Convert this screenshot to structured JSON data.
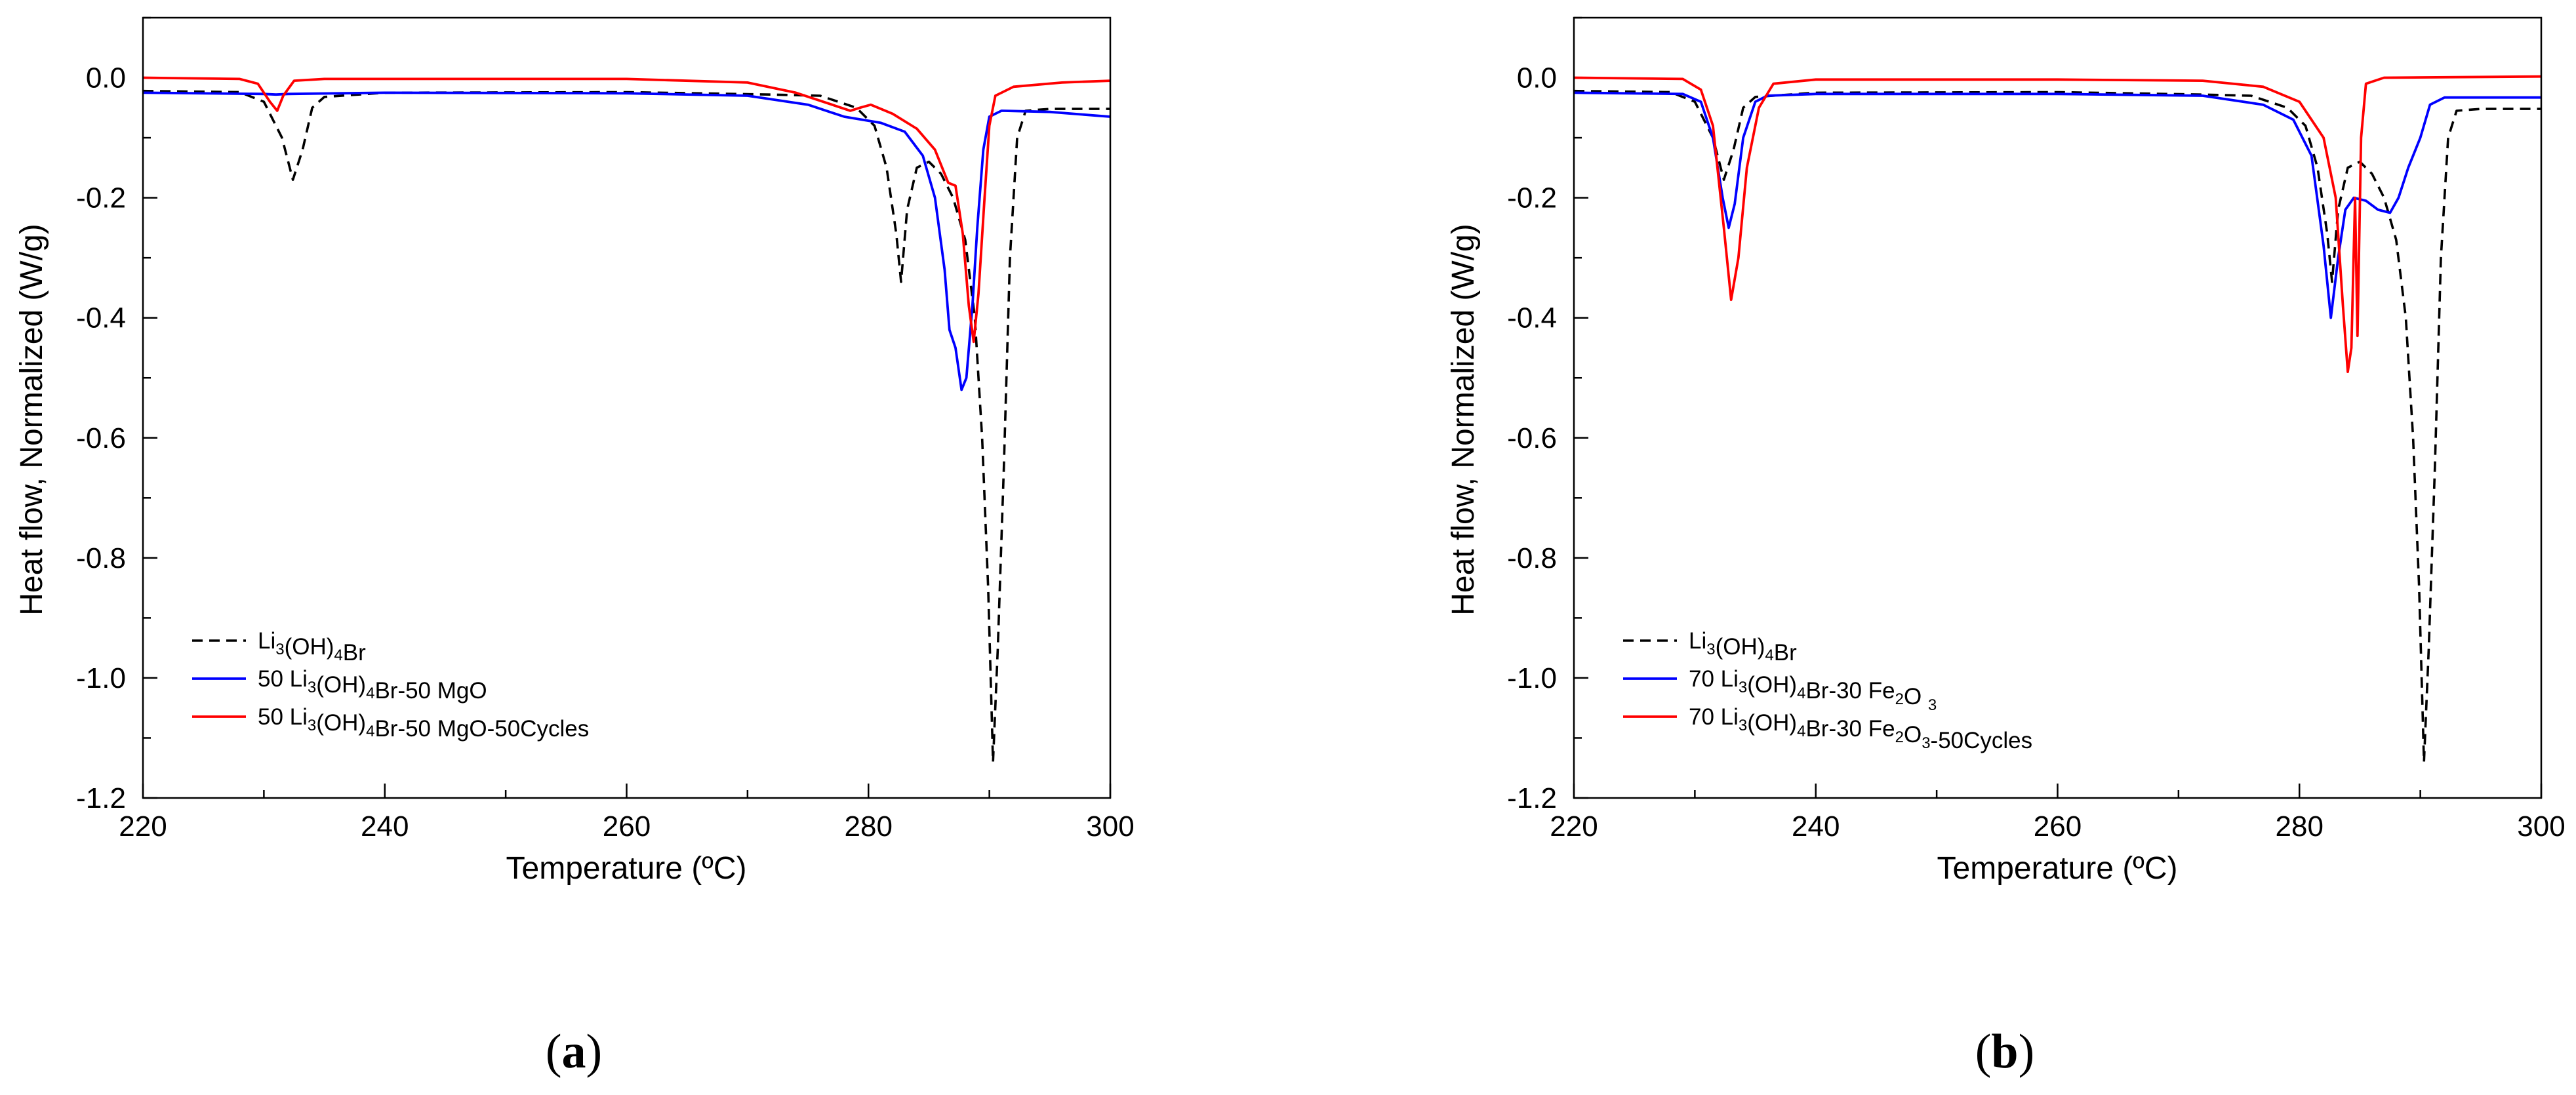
{
  "chart_data": [
    {
      "type": "line",
      "panel_label": "(a)",
      "panel_prefix": "(",
      "panel_letter": "a",
      "panel_suffix": ")",
      "xlabel": "Temperature (ºC)",
      "ylabel": "Heat flow, Normalized (W/g)",
      "xlim": [
        220,
        300
      ],
      "ylim": [
        -1.2,
        0.1
      ],
      "xticks": [
        "220",
        "240",
        "260",
        "280",
        "300"
      ],
      "yticks": [
        "0.0",
        "-0.2",
        "-0.4",
        "-0.6",
        "-0.8",
        "-1.0",
        "-1.2"
      ],
      "legend_position": "bottom-left",
      "series": [
        {
          "name": "Li3(OH)4Br",
          "legend": [
            [
              "Li",
              ""
            ],
            [
              "3",
              "sub"
            ],
            [
              "(OH)",
              ""
            ],
            [
              "4",
              "sub"
            ],
            [
              "Br",
              ""
            ]
          ],
          "color": "#000000",
          "dash": "dashed",
          "points": [
            [
              220,
              -0.022
            ],
            [
              228,
              -0.024
            ],
            [
              230,
              -0.04
            ],
            [
              231.5,
              -0.1
            ],
            [
              232.4,
              -0.17
            ],
            [
              233.2,
              -0.12
            ],
            [
              234,
              -0.05
            ],
            [
              235,
              -0.032
            ],
            [
              240,
              -0.025
            ],
            [
              260,
              -0.024
            ],
            [
              272,
              -0.028
            ],
            [
              276,
              -0.03
            ],
            [
              279,
              -0.05
            ],
            [
              280.5,
              -0.08
            ],
            [
              281.5,
              -0.15
            ],
            [
              282.3,
              -0.26
            ],
            [
              282.7,
              -0.34
            ],
            [
              283.2,
              -0.22
            ],
            [
              284,
              -0.15
            ],
            [
              285,
              -0.14
            ],
            [
              286,
              -0.16
            ],
            [
              287,
              -0.2
            ],
            [
              288,
              -0.27
            ],
            [
              288.8,
              -0.4
            ],
            [
              289.4,
              -0.6
            ],
            [
              289.9,
              -0.85
            ],
            [
              290.3,
              -1.14
            ],
            [
              290.7,
              -0.95
            ],
            [
              291.2,
              -0.65
            ],
            [
              291.7,
              -0.3
            ],
            [
              292.3,
              -0.1
            ],
            [
              293,
              -0.055
            ],
            [
              295,
              -0.052
            ],
            [
              300,
              -0.052
            ]
          ]
        },
        {
          "name": "50 Li3(OH)4Br-50 MgO",
          "legend": [
            [
              "50 Li",
              ""
            ],
            [
              "3",
              "sub"
            ],
            [
              "(OH)",
              ""
            ],
            [
              "4",
              "sub"
            ],
            [
              "Br-50 MgO",
              ""
            ]
          ],
          "color": "#0000ff",
          "dash": "solid",
          "points": [
            [
              220,
              -0.025
            ],
            [
              230,
              -0.027
            ],
            [
              231,
              -0.028
            ],
            [
              232,
              -0.027
            ],
            [
              240,
              -0.025
            ],
            [
              260,
              -0.026
            ],
            [
              270,
              -0.03
            ],
            [
              275,
              -0.045
            ],
            [
              278,
              -0.065
            ],
            [
              281,
              -0.075
            ],
            [
              283,
              -0.09
            ],
            [
              284.5,
              -0.13
            ],
            [
              285.5,
              -0.2
            ],
            [
              286.3,
              -0.32
            ],
            [
              286.7,
              -0.42
            ],
            [
              287.2,
              -0.45
            ],
            [
              287.7,
              -0.52
            ],
            [
              288.1,
              -0.5
            ],
            [
              288.6,
              -0.38
            ],
            [
              289,
              -0.25
            ],
            [
              289.5,
              -0.12
            ],
            [
              290,
              -0.065
            ],
            [
              291,
              -0.055
            ],
            [
              295,
              -0.057
            ],
            [
              300,
              -0.065
            ]
          ]
        },
        {
          "name": "50 Li3(OH)4Br-50 MgO-50Cycles",
          "legend": [
            [
              "50 Li",
              ""
            ],
            [
              "3",
              "sub"
            ],
            [
              "(OH)",
              ""
            ],
            [
              "4",
              "sub"
            ],
            [
              "Br-50 MgO-50Cycles",
              ""
            ]
          ],
          "color": "#ff0000",
          "dash": "solid",
          "points": [
            [
              220,
              0.0
            ],
            [
              228,
              -0.002
            ],
            [
              229.5,
              -0.01
            ],
            [
              230.5,
              -0.04
            ],
            [
              231.1,
              -0.055
            ],
            [
              231.6,
              -0.03
            ],
            [
              232.5,
              -0.005
            ],
            [
              235,
              -0.002
            ],
            [
              260,
              -0.002
            ],
            [
              270,
              -0.008
            ],
            [
              274,
              -0.025
            ],
            [
              277,
              -0.045
            ],
            [
              278.5,
              -0.055
            ],
            [
              279.3,
              -0.05
            ],
            [
              280.2,
              -0.045
            ],
            [
              282,
              -0.06
            ],
            [
              284,
              -0.085
            ],
            [
              285.5,
              -0.12
            ],
            [
              286.6,
              -0.175
            ],
            [
              287.2,
              -0.18
            ],
            [
              287.8,
              -0.26
            ],
            [
              288.3,
              -0.38
            ],
            [
              288.7,
              -0.44
            ],
            [
              289.1,
              -0.36
            ],
            [
              289.6,
              -0.2
            ],
            [
              290,
              -0.08
            ],
            [
              290.5,
              -0.03
            ],
            [
              292,
              -0.015
            ],
            [
              296,
              -0.008
            ],
            [
              300,
              -0.005
            ]
          ]
        }
      ]
    },
    {
      "type": "line",
      "panel_label": "(b)",
      "panel_prefix": "(",
      "panel_letter": "b",
      "panel_suffix": ")",
      "xlabel": "Temperature (ºC)",
      "ylabel": "Heat flow, Normalized (W/g)",
      "xlim": [
        220,
        300
      ],
      "ylim": [
        -1.2,
        0.1
      ],
      "xticks": [
        "220",
        "240",
        "260",
        "280",
        "300"
      ],
      "yticks": [
        "0.0",
        "-0.2",
        "-0.4",
        "-0.6",
        "-0.8",
        "-1.0",
        "-1.2"
      ],
      "legend_position": "bottom-left",
      "series": [
        {
          "name": "Li3(OH)4Br",
          "legend": [
            [
              "Li",
              ""
            ],
            [
              "3",
              "sub"
            ],
            [
              "(OH)",
              ""
            ],
            [
              "4",
              "sub"
            ],
            [
              "Br",
              ""
            ]
          ],
          "color": "#000000",
          "dash": "dashed",
          "points": [
            [
              220,
              -0.022
            ],
            [
              228,
              -0.024
            ],
            [
              230,
              -0.04
            ],
            [
              231.5,
              -0.1
            ],
            [
              232.4,
              -0.17
            ],
            [
              233.2,
              -0.12
            ],
            [
              234,
              -0.05
            ],
            [
              235,
              -0.032
            ],
            [
              240,
              -0.025
            ],
            [
              260,
              -0.024
            ],
            [
              272,
              -0.028
            ],
            [
              276,
              -0.03
            ],
            [
              279,
              -0.05
            ],
            [
              280.5,
              -0.08
            ],
            [
              281.5,
              -0.15
            ],
            [
              282.3,
              -0.26
            ],
            [
              282.7,
              -0.34
            ],
            [
              283.2,
              -0.22
            ],
            [
              284,
              -0.15
            ],
            [
              285,
              -0.14
            ],
            [
              286,
              -0.16
            ],
            [
              287,
              -0.2
            ],
            [
              288,
              -0.27
            ],
            [
              288.8,
              -0.4
            ],
            [
              289.4,
              -0.6
            ],
            [
              289.9,
              -0.85
            ],
            [
              290.3,
              -1.14
            ],
            [
              290.7,
              -0.95
            ],
            [
              291.2,
              -0.65
            ],
            [
              291.7,
              -0.3
            ],
            [
              292.3,
              -0.1
            ],
            [
              293,
              -0.055
            ],
            [
              295,
              -0.052
            ],
            [
              300,
              -0.052
            ]
          ]
        },
        {
          "name": "70 Li3(OH)4Br-30 Fe2O3",
          "legend": [
            [
              "70 Li",
              ""
            ],
            [
              "3",
              "sub"
            ],
            [
              "(OH)",
              ""
            ],
            [
              "4",
              "sub"
            ],
            [
              "Br-30 Fe",
              ""
            ],
            [
              "2",
              "sub"
            ],
            [
              "O ",
              ""
            ],
            [
              "3",
              "sub"
            ]
          ],
          "color": "#0000ff",
          "dash": "solid",
          "points": [
            [
              220,
              -0.025
            ],
            [
              229,
              -0.027
            ],
            [
              230.5,
              -0.04
            ],
            [
              231.5,
              -0.1
            ],
            [
              232.3,
              -0.2
            ],
            [
              232.8,
              -0.25
            ],
            [
              233.3,
              -0.21
            ],
            [
              234,
              -0.1
            ],
            [
              235,
              -0.04
            ],
            [
              236,
              -0.03
            ],
            [
              240,
              -0.027
            ],
            [
              260,
              -0.027
            ],
            [
              272,
              -0.03
            ],
            [
              277,
              -0.045
            ],
            [
              279.5,
              -0.07
            ],
            [
              281,
              -0.13
            ],
            [
              282,
              -0.28
            ],
            [
              282.6,
              -0.4
            ],
            [
              283.2,
              -0.3
            ],
            [
              283.8,
              -0.22
            ],
            [
              284.5,
              -0.2
            ],
            [
              285.5,
              -0.205
            ],
            [
              286.5,
              -0.22
            ],
            [
              287.5,
              -0.225
            ],
            [
              288.2,
              -0.2
            ],
            [
              289,
              -0.15
            ],
            [
              290,
              -0.1
            ],
            [
              290.8,
              -0.045
            ],
            [
              292,
              -0.033
            ],
            [
              300,
              -0.033
            ]
          ]
        },
        {
          "name": "70 Li3(OH)4Br-30 Fe2O3-50Cycles",
          "legend": [
            [
              "70 Li",
              ""
            ],
            [
              "3",
              "sub"
            ],
            [
              "(OH)",
              ""
            ],
            [
              "4",
              "sub"
            ],
            [
              "Br-30 Fe",
              ""
            ],
            [
              "2",
              "sub"
            ],
            [
              "O",
              ""
            ],
            [
              "3",
              "sub"
            ],
            [
              "-50Cycles",
              ""
            ]
          ],
          "color": "#ff0000",
          "dash": "solid",
          "points": [
            [
              220,
              0.0
            ],
            [
              229,
              -0.002
            ],
            [
              230.5,
              -0.02
            ],
            [
              231.5,
              -0.08
            ],
            [
              232.4,
              -0.25
            ],
            [
              233,
              -0.37
            ],
            [
              233.6,
              -0.3
            ],
            [
              234.3,
              -0.15
            ],
            [
              235.3,
              -0.05
            ],
            [
              236.5,
              -0.01
            ],
            [
              240,
              -0.003
            ],
            [
              260,
              -0.003
            ],
            [
              272,
              -0.005
            ],
            [
              277,
              -0.015
            ],
            [
              280,
              -0.04
            ],
            [
              282,
              -0.1
            ],
            [
              283,
              -0.2
            ],
            [
              283.6,
              -0.38
            ],
            [
              284,
              -0.49
            ],
            [
              284.3,
              -0.45
            ],
            [
              284.6,
              -0.2
            ],
            [
              284.8,
              -0.43
            ],
            [
              285.1,
              -0.1
            ],
            [
              285.5,
              -0.01
            ],
            [
              287,
              0.0
            ],
            [
              300,
              0.002
            ]
          ]
        }
      ]
    }
  ]
}
